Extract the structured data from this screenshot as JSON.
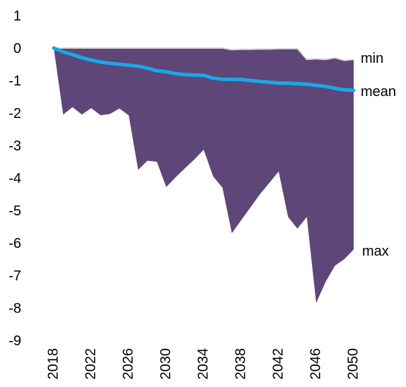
{
  "chart_data": {
    "type": "area",
    "title": "",
    "xlabel": "",
    "ylabel": "",
    "x": [
      2018,
      2019,
      2020,
      2021,
      2022,
      2023,
      2024,
      2025,
      2026,
      2027,
      2028,
      2029,
      2030,
      2031,
      2032,
      2033,
      2034,
      2035,
      2036,
      2037,
      2038,
      2039,
      2040,
      2041,
      2042,
      2043,
      2044,
      2045,
      2046,
      2047,
      2048,
      2049,
      2050
    ],
    "xticks": [
      "2018",
      "2022",
      "2026",
      "2030",
      "2034",
      "2038",
      "2042",
      "2046",
      "2050"
    ],
    "ylim": [
      -9,
      1
    ],
    "yticks": [
      1,
      0,
      -1,
      -2,
      -3,
      -4,
      -5,
      -6,
      -7,
      -8,
      -9
    ],
    "series": [
      {
        "name": "min",
        "values": [
          0,
          0,
          0,
          0,
          0,
          0,
          0,
          0,
          0,
          0,
          0,
          0,
          0,
          0,
          0,
          0,
          0,
          0,
          0,
          -0.05,
          -0.04,
          -0.04,
          -0.03,
          -0.03,
          -0.02,
          -0.02,
          -0.02,
          -0.35,
          -0.33,
          -0.35,
          -0.3,
          -0.38,
          -0.35
        ]
      },
      {
        "name": "mean",
        "values": [
          0,
          -0.12,
          -0.2,
          -0.3,
          -0.37,
          -0.43,
          -0.47,
          -0.5,
          -0.53,
          -0.56,
          -0.62,
          -0.7,
          -0.73,
          -0.79,
          -0.82,
          -0.83,
          -0.84,
          -0.93,
          -0.96,
          -0.96,
          -0.97,
          -1.0,
          -1.03,
          -1.05,
          -1.08,
          -1.08,
          -1.1,
          -1.11,
          -1.15,
          -1.18,
          -1.24,
          -1.29,
          -1.3
        ]
      },
      {
        "name": "max",
        "values": [
          0,
          -2.05,
          -1.82,
          -2.05,
          -1.85,
          -2.07,
          -2.03,
          -1.86,
          -2.07,
          -3.75,
          -3.47,
          -3.5,
          -4.28,
          -3.98,
          -3.7,
          -3.43,
          -3.13,
          -3.95,
          -4.3,
          -5.7,
          -5.3,
          -4.9,
          -4.5,
          -4.15,
          -3.8,
          -5.2,
          -5.56,
          -5.2,
          -7.85,
          -7.2,
          -6.7,
          -6.5,
          -6.2
        ]
      }
    ],
    "colors": {
      "area": "#5e4679",
      "mean_line": "#1aa7e6",
      "min_line": "#d9d9d9"
    },
    "grid": false,
    "legend": "direct labels at right end of series"
  }
}
